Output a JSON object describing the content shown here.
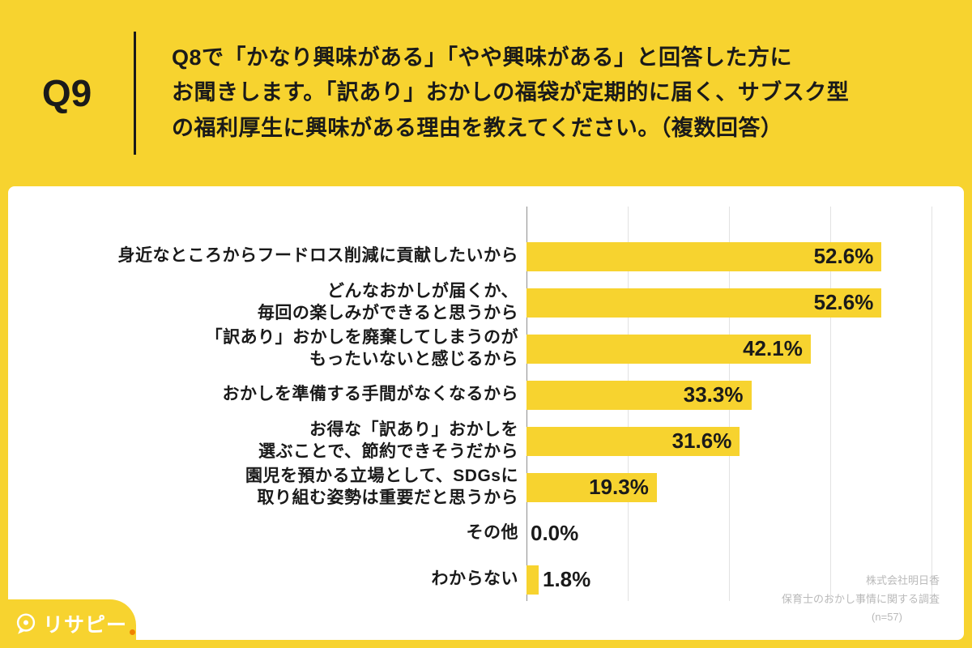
{
  "colors": {
    "background": "#F7D32F",
    "card": "#FFFFFF",
    "bar": "#F7D32F",
    "text": "#1A1A1A",
    "grid": "#E2E2E2",
    "axis": "#8F8F8F",
    "source_text": "#B9B9B9",
    "logo_text": "#FFFFFF",
    "logo_dot": "#EF8200"
  },
  "header": {
    "question_number": "Q9",
    "question_text": "Q8で「かなり興味がある」「やや興味がある」と回答した方に\nお聞きします。「訳あり」おかしの福袋が定期的に届く、サブスク型\nの福利厚生に興味がある理由を教えてください。（複数回答）"
  },
  "chart_data": {
    "type": "bar",
    "orientation": "horizontal",
    "title": "Q8で「かなり興味がある」「やや興味がある」と回答した方にお聞きします。「訳あり」おかしの福袋が定期的に届く、サブスク型の福利厚生に興味がある理由を教えてください。（複数回答）",
    "categories": [
      "身近なところからフードロス削減に貢献したいから",
      "どんなおかしが届くか、\n毎回の楽しみができると思うから",
      "「訳あり」おかしを廃棄してしまうのが\nもったいないと感じるから",
      "おかしを準備する手間がなくなるから",
      "お得な「訳あり」おかしを\n選ぶことで、節約できそうだから",
      "園児を預かる立場として、SDGsに\n取り組む姿勢は重要だと思うから",
      "その他",
      "わからない"
    ],
    "values": [
      52.6,
      52.6,
      42.1,
      33.3,
      31.6,
      19.3,
      0.0,
      1.8
    ],
    "value_labels": [
      "52.6%",
      "52.6%",
      "42.1%",
      "33.3%",
      "31.6%",
      "19.3%",
      "0.0%",
      "1.8%"
    ],
    "xlim": [
      0,
      60
    ],
    "gridline_positions_pct": [
      0,
      15,
      30,
      45,
      60
    ],
    "grid": true,
    "legend": false,
    "xlabel": "",
    "ylabel": ""
  },
  "source": {
    "company": "株式会社明日香",
    "survey": "保育士のおかし事情に関する調査",
    "sample": "(n=57)"
  },
  "logo": {
    "text": "リサピー"
  }
}
